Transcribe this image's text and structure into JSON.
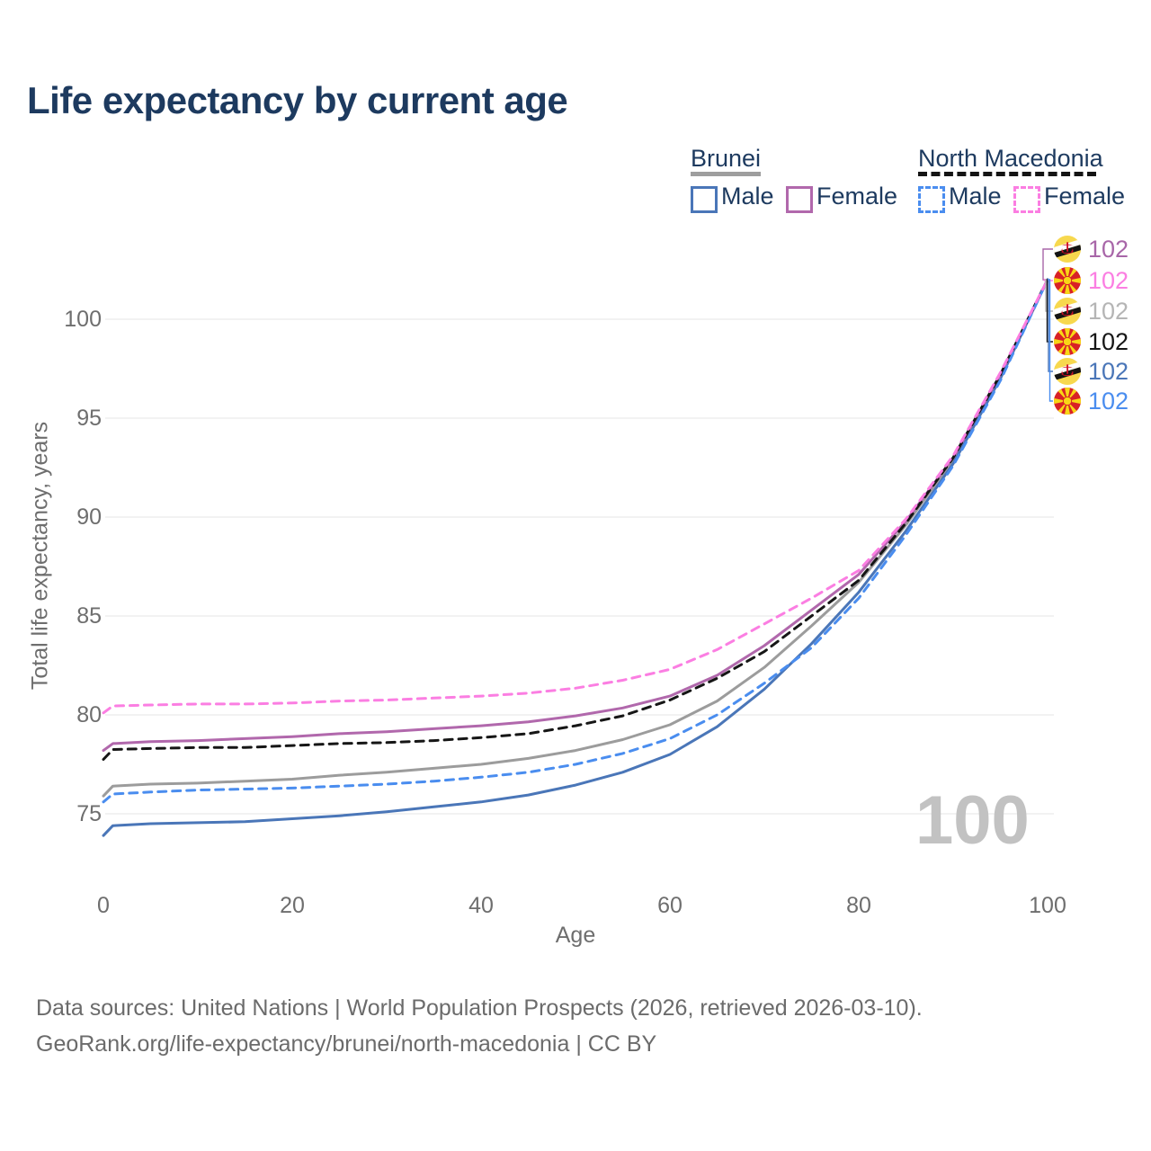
{
  "title": "Life expectancy by current age",
  "legend": {
    "groups": [
      {
        "label": "Brunei",
        "underline_color": "#9e9e9e",
        "underline_style": "solid",
        "items": [
          {
            "label": "Male",
            "color": "#4a76b8",
            "style": "solid"
          },
          {
            "label": "Female",
            "color": "#b168ac",
            "style": "solid"
          }
        ]
      },
      {
        "label": "North Macedonia",
        "underline_color": "#141414",
        "underline_style": "dashed",
        "items": [
          {
            "label": "Male",
            "color": "#4a8def",
            "style": "dashed"
          },
          {
            "label": "Female",
            "color": "#fb7ee2",
            "style": "dashed"
          }
        ]
      }
    ]
  },
  "axes": {
    "x": {
      "label": "Age",
      "ticks": [
        0,
        20,
        40,
        60,
        80,
        100
      ],
      "range": [
        0,
        100
      ]
    },
    "y": {
      "label": "Total life expectancy, years",
      "ticks": [
        75,
        80,
        85,
        90,
        95,
        100
      ],
      "range": [
        73,
        103
      ]
    }
  },
  "chart_data": {
    "type": "line",
    "title": "Life expectancy by current age",
    "xlabel": "Age",
    "ylabel": "Total life expectancy, years",
    "xlim": [
      0,
      100
    ],
    "ylim": [
      73,
      103
    ],
    "grid": "horizontal",
    "legend_position": "top-right",
    "x": [
      0,
      1,
      5,
      10,
      15,
      20,
      25,
      30,
      35,
      40,
      45,
      50,
      55,
      60,
      65,
      70,
      75,
      80,
      85,
      90,
      95,
      100
    ],
    "series": [
      {
        "name": "Brunei Total",
        "country": "Brunei",
        "sex": "Both",
        "color": "#9c9c9c",
        "dash": false,
        "values": [
          75.9,
          76.4,
          76.5,
          76.55,
          76.65,
          76.75,
          76.95,
          77.1,
          77.3,
          77.5,
          77.8,
          78.2,
          78.75,
          79.5,
          80.7,
          82.4,
          84.5,
          86.7,
          89.6,
          92.9,
          97.1,
          102
        ]
      },
      {
        "name": "Brunei Male",
        "country": "Brunei",
        "sex": "Male",
        "color": "#4a76b8",
        "dash": false,
        "values": [
          73.9,
          74.4,
          74.5,
          74.55,
          74.6,
          74.75,
          74.9,
          75.1,
          75.35,
          75.6,
          75.95,
          76.45,
          77.1,
          78.0,
          79.4,
          81.3,
          83.6,
          86.2,
          89.3,
          92.7,
          97.0,
          102
        ]
      },
      {
        "name": "Brunei Female",
        "country": "Brunei",
        "sex": "Female",
        "color": "#b168ac",
        "dash": false,
        "values": [
          78.2,
          78.55,
          78.65,
          78.7,
          78.8,
          78.9,
          79.05,
          79.15,
          79.3,
          79.45,
          79.65,
          79.95,
          80.35,
          80.95,
          82.0,
          83.5,
          85.3,
          87.1,
          89.8,
          93.0,
          97.2,
          102
        ]
      },
      {
        "name": "North Macedonia Total",
        "country": "North Macedonia",
        "sex": "Both",
        "color": "#161616",
        "dash": true,
        "values": [
          77.75,
          78.25,
          78.3,
          78.35,
          78.35,
          78.45,
          78.55,
          78.6,
          78.7,
          78.85,
          79.05,
          79.45,
          79.95,
          80.75,
          81.85,
          83.2,
          85.0,
          86.8,
          89.7,
          93.0,
          97.2,
          102
        ]
      },
      {
        "name": "North Macedonia Male",
        "country": "North Macedonia",
        "sex": "Male",
        "color": "#4a8def",
        "dash": true,
        "values": [
          75.6,
          76.0,
          76.1,
          76.2,
          76.25,
          76.3,
          76.4,
          76.5,
          76.65,
          76.85,
          77.1,
          77.5,
          78.05,
          78.8,
          80.0,
          81.6,
          83.4,
          85.9,
          89.1,
          92.6,
          96.9,
          102
        ]
      },
      {
        "name": "North Macedonia Female",
        "country": "North Macedonia",
        "sex": "Female",
        "color": "#fb7ee2",
        "dash": true,
        "values": [
          80.1,
          80.45,
          80.5,
          80.55,
          80.55,
          80.6,
          80.7,
          80.75,
          80.85,
          80.95,
          81.1,
          81.35,
          81.75,
          82.3,
          83.3,
          84.6,
          85.9,
          87.3,
          89.9,
          93.1,
          97.3,
          102
        ]
      }
    ]
  },
  "end_labels": [
    {
      "flag": "brunei-flag",
      "series": "Brunei Female",
      "value": "102",
      "color": "#a866a8"
    },
    {
      "flag": "north-macedonia-flag",
      "series": "North Macedonia Female",
      "value": "102",
      "color": "#fb7ee2"
    },
    {
      "flag": "brunei-flag",
      "series": "Brunei Total",
      "value": "102",
      "color": "#b5b5b5"
    },
    {
      "flag": "north-macedonia-flag",
      "series": "North Macedonia Total",
      "value": "102",
      "color": "#161616"
    },
    {
      "flag": "brunei-flag",
      "series": "Brunei Male",
      "value": "102",
      "color": "#4a76b8"
    },
    {
      "flag": "north-macedonia-flag",
      "series": "North Macedonia Male",
      "value": "102",
      "color": "#4a8def"
    }
  ],
  "watermark": "100",
  "footer": {
    "line1": "Data sources: United Nations | World Population Prospects (2026, retrieved 2026-03-10).",
    "line2": "GeoRank.org/life-expectancy/brunei/north-macedonia | CC BY"
  },
  "colors": {
    "title_text": "#1d3a5f",
    "grid": "#e9e9e9",
    "tick_text": "#6e6e6e",
    "footer_text": "#6b6b6b",
    "watermark": "#c2c2c2"
  }
}
